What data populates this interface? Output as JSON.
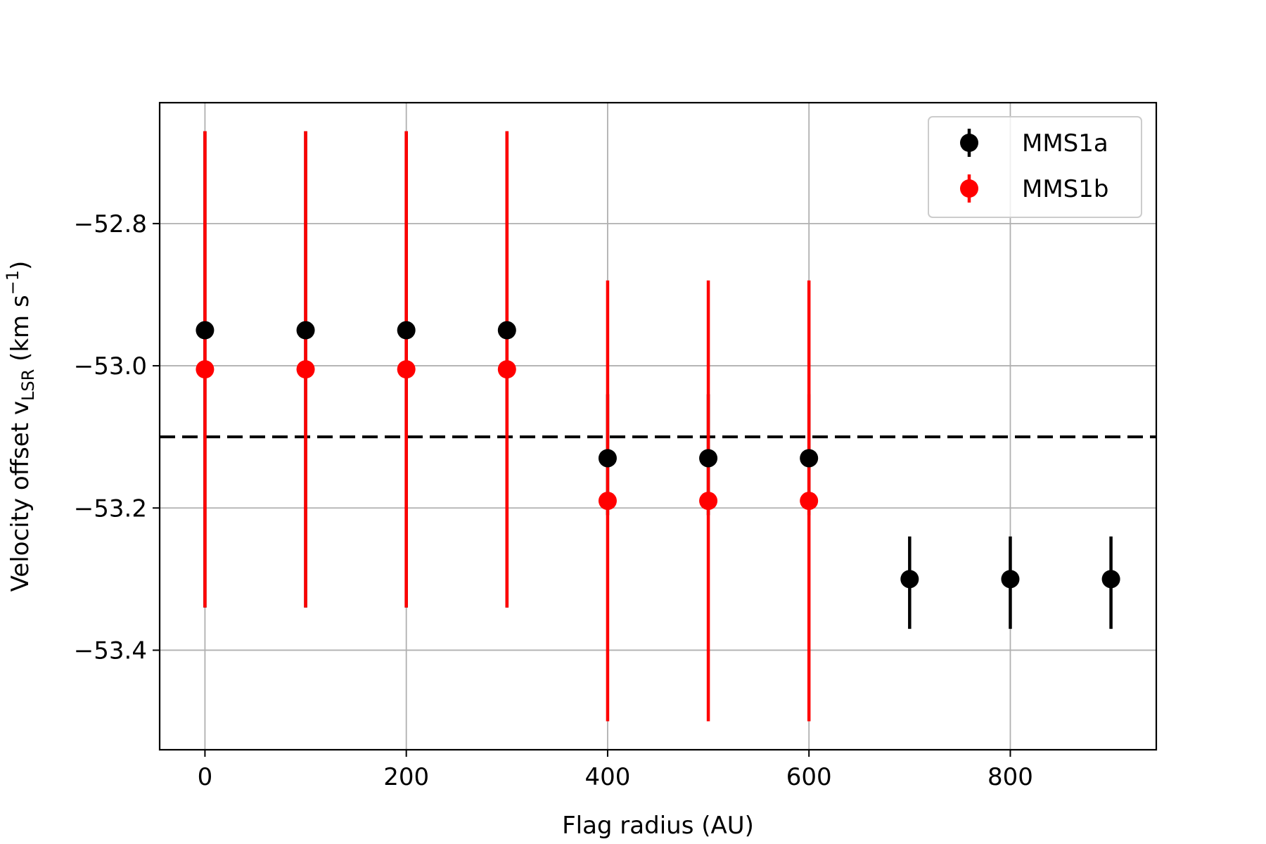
{
  "chart_data": {
    "type": "scatter",
    "xlabel": "Flag radius (AU)",
    "ylabel": {
      "main": "Velocity offset v",
      "subscript": "LSR",
      "unit_open": " (km s",
      "superscript": "−1",
      "unit_close": ")"
    },
    "xlim": [
      -45,
      945
    ],
    "ylim": [
      -53.54,
      -52.63
    ],
    "xticks": [
      0,
      200,
      400,
      600,
      800
    ],
    "yticks": [
      -52.8,
      -53.0,
      -53.2,
      -53.4
    ],
    "xtick_labels": [
      "0",
      "200",
      "400",
      "600",
      "800"
    ],
    "ytick_labels": [
      "−52.8",
      "−53.0",
      "−53.2",
      "−53.4"
    ],
    "grid": true,
    "legend_position": "top-right",
    "reference_line": {
      "y": -53.1,
      "style": "dashed",
      "color": "#000000"
    },
    "series": [
      {
        "name": "MMS1a",
        "color": "#000000",
        "points": [
          {
            "x": 0,
            "y": -52.95,
            "ylo": -53.34,
            "yhi": -52.67
          },
          {
            "x": 100,
            "y": -52.95,
            "ylo": -53.34,
            "yhi": -52.67
          },
          {
            "x": 200,
            "y": -52.95,
            "ylo": -53.34,
            "yhi": -52.67
          },
          {
            "x": 300,
            "y": -52.95,
            "ylo": -53.34,
            "yhi": -52.67
          },
          {
            "x": 400,
            "y": -53.13,
            "ylo": -53.21,
            "yhi": -53.04
          },
          {
            "x": 500,
            "y": -53.13,
            "ylo": -53.21,
            "yhi": -53.04
          },
          {
            "x": 600,
            "y": -53.13,
            "ylo": -53.21,
            "yhi": -53.04
          },
          {
            "x": 700,
            "y": -53.3,
            "ylo": -53.37,
            "yhi": -53.24
          },
          {
            "x": 800,
            "y": -53.3,
            "ylo": -53.37,
            "yhi": -53.24
          },
          {
            "x": 900,
            "y": -53.3,
            "ylo": -53.37,
            "yhi": -53.24
          }
        ]
      },
      {
        "name": "MMS1b",
        "color": "#ff0000",
        "points": [
          {
            "x": 0,
            "y": -53.005,
            "ylo": -53.34,
            "yhi": -52.67
          },
          {
            "x": 100,
            "y": -53.005,
            "ylo": -53.34,
            "yhi": -52.67
          },
          {
            "x": 200,
            "y": -53.005,
            "ylo": -53.34,
            "yhi": -52.67
          },
          {
            "x": 300,
            "y": -53.005,
            "ylo": -53.34,
            "yhi": -52.67
          },
          {
            "x": 400,
            "y": -53.19,
            "ylo": -53.5,
            "yhi": -52.88
          },
          {
            "x": 500,
            "y": -53.19,
            "ylo": -53.5,
            "yhi": -52.88
          },
          {
            "x": 600,
            "y": -53.19,
            "ylo": -53.5,
            "yhi": -52.88
          }
        ]
      }
    ]
  }
}
